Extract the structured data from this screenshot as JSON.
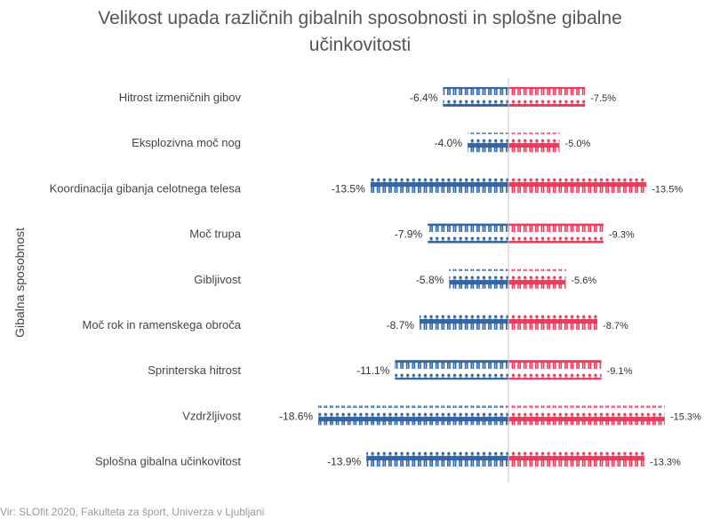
{
  "title_line1": "Velikost upada različnih gibalnih sposobnosti in splošne gibalne",
  "title_line2": "učinkovitosti",
  "footer": "Vir: SLOfit 2020, Fakulteta za šport, Univerza v Ljubljani",
  "colors": {
    "left": "#2e64a8",
    "right": "#f0385a",
    "axis": "#c8c8c8"
  },
  "chart_data": {
    "type": "bar",
    "ylabel": "Gibalna sposobnost",
    "categories": [
      "Hitrost izmeničnih gibov",
      "Eksplozivna moč nog",
      "Koordinacija gibanja celotnega telesa",
      "Moč trupa",
      "Gibljivost",
      "Moč rok in ramenskega obroča",
      "Sprinterska hitrost",
      "Vzdržljivost",
      "Splošna gibalna učinkovitost"
    ],
    "series": [
      {
        "values": [
          -6.4,
          -4.0,
          -13.5,
          -7.9,
          -5.8,
          -8.7,
          -11.1,
          -18.6,
          -13.9
        ],
        "labels": [
          "-6.4%",
          "-4.0%",
          "-13.5%",
          "-7.9%",
          "-5.8%",
          "-8.7%",
          "-11.1%",
          "-18.6%",
          "-13.9%"
        ]
      },
      {
        "values": [
          -7.5,
          -5.0,
          -13.5,
          -9.3,
          -5.6,
          -8.7,
          -9.1,
          -15.3,
          -13.3
        ],
        "labels": [
          "-7.5%",
          "-5.0%",
          "-13.5%",
          "-9.3%",
          "-5.6%",
          "-8.7%",
          "-9.1%",
          "-15.3%",
          "-13.3%"
        ]
      }
    ]
  }
}
